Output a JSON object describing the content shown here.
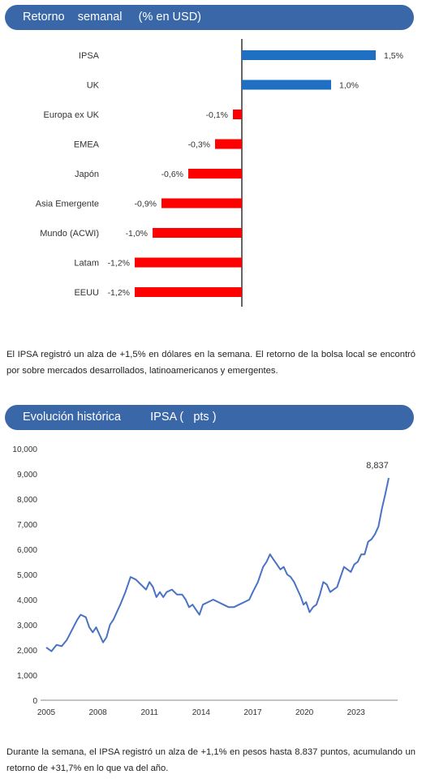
{
  "banner1": {
    "title": "Retorno    semanal     (% en USD)"
  },
  "banner2": {
    "title": "Evolución histórica         IPSA (   pts )"
  },
  "paragraph1": "El IPSA registró un alza de +1,5% en dólares en la semana. El retorno de la bolsa local se encontró por sobre mercados desarrollados, latinoamericanos y emergentes.",
  "paragraph2": "Durante la semana, el IPSA registró un alza de +1,1% en pesos hasta 8.837 puntos, acumulando un retorno de +31,7% en lo que va del año.",
  "colors": {
    "banner": "#3a67a8",
    "positive": "#1f6fc2",
    "negative": "#ff0000",
    "line": "#4a72c4"
  },
  "chart_data": [
    {
      "type": "bar",
      "orientation": "horizontal",
      "categories": [
        "IPSA",
        "UK",
        "Europa ex UK",
        "EMEA",
        "Japón",
        "Asia Emergente",
        "Mundo (ACWI)",
        "Latam",
        "EEUU"
      ],
      "values": [
        1.5,
        1.0,
        -0.1,
        -0.3,
        -0.6,
        -0.9,
        -1.0,
        -1.2,
        -1.2
      ],
      "value_labels": [
        "1,5%",
        "1,0%",
        "-0,1%",
        "-0,3%",
        "-0,6%",
        "-0,9%",
        "-1,0%",
        "-1,2%",
        "-1,2%"
      ],
      "xlim": [
        -1.3,
        1.6
      ]
    },
    {
      "type": "line",
      "x_ticks": [
        "2005",
        "2008",
        "2011",
        "2014",
        "2017",
        "2020",
        "2023"
      ],
      "y_ticks": [
        "0",
        "1,000",
        "2,000",
        "3,000",
        "4,000",
        "5,000",
        "6,000",
        "7,000",
        "8,000",
        "9,000",
        "10,000"
      ],
      "ylim": [
        0,
        10000
      ],
      "xlim": [
        2005,
        2024.9
      ],
      "end_label": "8,837",
      "series": [
        {
          "x": [
            2005.0,
            2005.3,
            2005.6,
            2005.9,
            2006.2,
            2006.5,
            2006.8,
            2007.0,
            2007.3,
            2007.5,
            2007.7,
            2007.9,
            2008.1,
            2008.3,
            2008.5,
            2008.7,
            2008.9,
            2009.1,
            2009.3,
            2009.6,
            2009.9,
            2010.2,
            2010.5,
            2010.8,
            2011.0,
            2011.2,
            2011.4,
            2011.6,
            2011.8,
            2012.0,
            2012.3,
            2012.6,
            2012.9,
            2013.1,
            2013.3,
            2013.5,
            2013.7,
            2013.9,
            2014.1,
            2014.4,
            2014.7,
            2015.0,
            2015.3,
            2015.6,
            2015.9,
            2016.2,
            2016.5,
            2016.8,
            2017.0,
            2017.3,
            2017.6,
            2017.8,
            2018.0,
            2018.2,
            2018.4,
            2018.6,
            2018.8,
            2019.0,
            2019.2,
            2019.4,
            2019.6,
            2019.8,
            2019.95,
            2020.1,
            2020.3,
            2020.5,
            2020.7,
            2020.9,
            2021.1,
            2021.3,
            2021.5,
            2021.7,
            2021.9,
            2022.1,
            2022.3,
            2022.5,
            2022.7,
            2022.9,
            2023.1,
            2023.3,
            2023.5,
            2023.7,
            2023.9,
            2024.1,
            2024.3,
            2024.5,
            2024.7,
            2024.9
          ],
          "y": [
            2100,
            1950,
            2200,
            2150,
            2400,
            2800,
            3200,
            3400,
            3300,
            2900,
            2700,
            2900,
            2600,
            2300,
            2500,
            3000,
            3200,
            3500,
            3800,
            4300,
            4900,
            4800,
            4600,
            4400,
            4700,
            4500,
            4100,
            4300,
            4100,
            4300,
            4400,
            4200,
            4200,
            4000,
            3700,
            3800,
            3600,
            3400,
            3800,
            3900,
            4000,
            3900,
            3800,
            3700,
            3700,
            3800,
            3900,
            4000,
            4300,
            4700,
            5300,
            5500,
            5800,
            5600,
            5400,
            5200,
            5300,
            5000,
            4900,
            4700,
            4400,
            4100,
            3800,
            3900,
            3500,
            3700,
            3800,
            4200,
            4700,
            4600,
            4300,
            4400,
            4500,
            4900,
            5300,
            5200,
            5100,
            5400,
            5500,
            5800,
            5800,
            6300,
            6400,
            6600,
            6900,
            7600,
            8200,
            8837
          ]
        }
      ]
    }
  ]
}
